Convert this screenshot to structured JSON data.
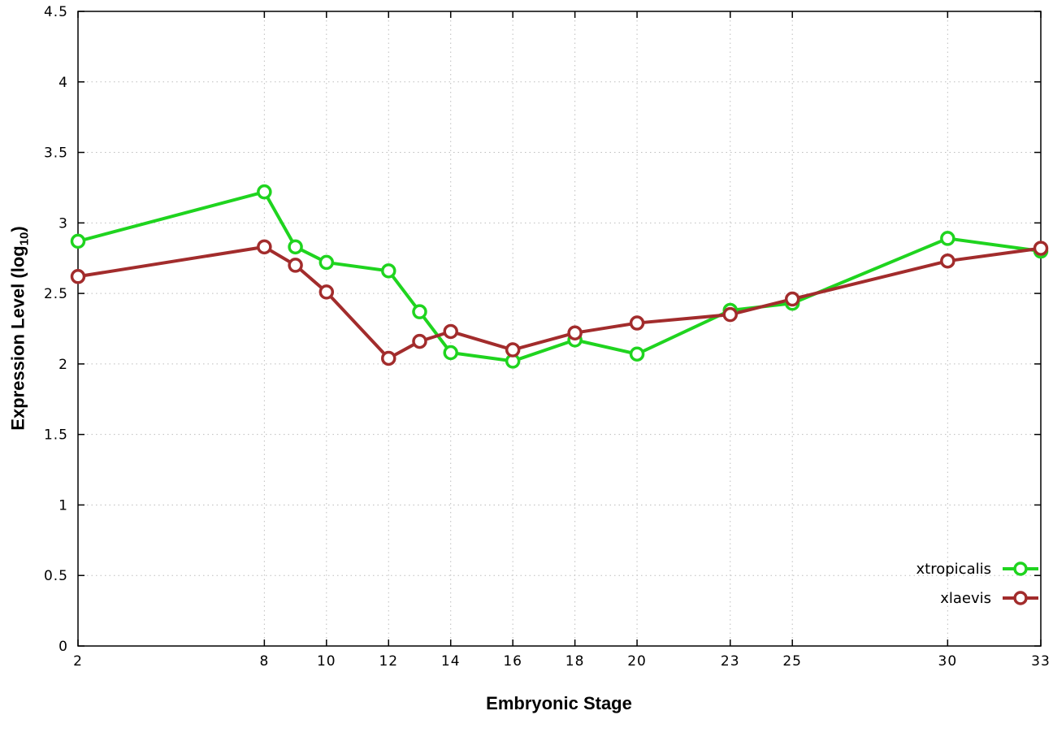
{
  "chart_data": {
    "type": "line",
    "title": "",
    "xlabel": "Embryonic Stage",
    "ylabel": {
      "pre": "Expression Level (log",
      "sub": "10",
      "post": ")"
    },
    "x": [
      2,
      8,
      9,
      10,
      12,
      13,
      14,
      16,
      18,
      20,
      23,
      25,
      30,
      33
    ],
    "series": [
      {
        "name": "xtropicalis",
        "color": "#1fd41f",
        "values": [
          2.87,
          3.22,
          2.83,
          2.72,
          2.66,
          2.37,
          2.08,
          2.02,
          2.17,
          2.07,
          2.38,
          2.43,
          2.89,
          2.8
        ]
      },
      {
        "name": "xlaevis",
        "color": "#a22c2c",
        "values": [
          2.62,
          2.83,
          2.7,
          2.51,
          2.04,
          2.16,
          2.23,
          2.1,
          2.22,
          2.29,
          2.35,
          2.46,
          2.73,
          2.82
        ]
      }
    ],
    "xticks": [
      2,
      8,
      10,
      12,
      14,
      16,
      18,
      20,
      23,
      25,
      30,
      33
    ],
    "yticks": [
      0,
      0.5,
      1,
      1.5,
      2,
      2.5,
      3,
      3.5,
      4,
      4.5
    ],
    "xlim": [
      2,
      33
    ],
    "ylim": [
      0,
      4.5
    ],
    "grid": true,
    "legend_position": "bottom-right",
    "grid_color": "#bdbdbd",
    "axis_color": "#000000",
    "background_color": "#ffffff"
  }
}
